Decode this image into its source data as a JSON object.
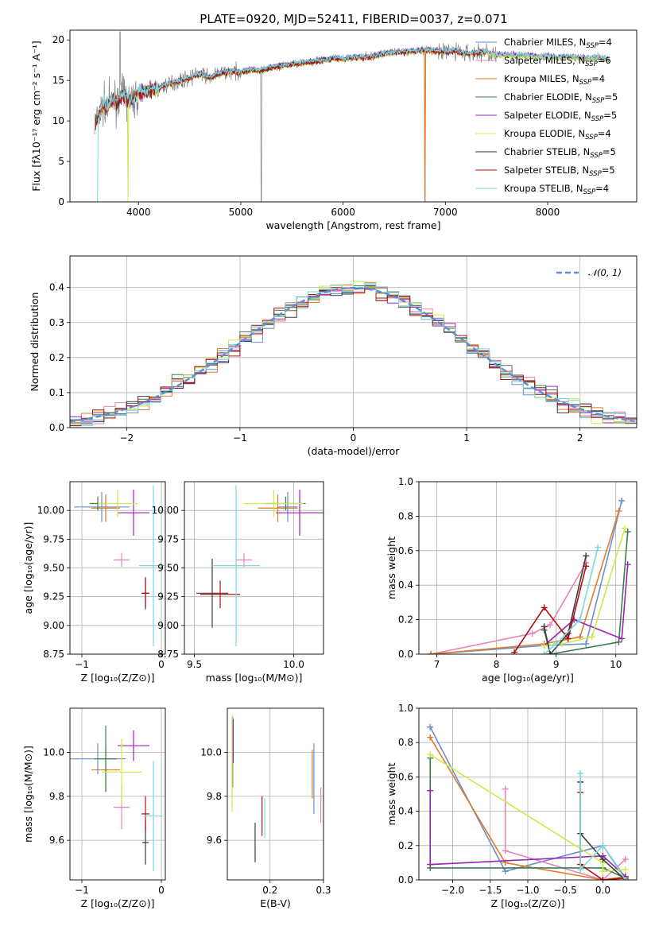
{
  "figure_title": "PLATE=0920, MJD=52411, FIBERID=0037, z=0.071",
  "models": [
    {
      "name": "Chabrier MILES, N",
      "sub": "SSP",
      "tail": "=4",
      "color": "#6a8fd0"
    },
    {
      "name": "Salpeter MILES, N",
      "sub": "SSP",
      "tail": "=6",
      "color": "#e884b8"
    },
    {
      "name": "Kroupa MILES, N",
      "sub": "SSP",
      "tail": "=4",
      "color": "#e07b2c"
    },
    {
      "name": "Chabrier ELODIE, N",
      "sub": "SSP",
      "tail": "=5",
      "color": "#3b7d50"
    },
    {
      "name": "Salpeter ELODIE, N",
      "sub": "SSP",
      "tail": "=5",
      "color": "#9a27b0"
    },
    {
      "name": "Kroupa ELODIE, N",
      "sub": "SSP",
      "tail": "=4",
      "color": "#cfe84a"
    },
    {
      "name": "Chabrier STELIB, N",
      "sub": "SSP",
      "tail": "=5",
      "color": "#3c3c3c"
    },
    {
      "name": "Salpeter STELIB, N",
      "sub": "SSP",
      "tail": "=5",
      "color": "#b01010"
    },
    {
      "name": "Kroupa STELIB, N",
      "sub": "SSP",
      "tail": "=4",
      "color": "#7ad8de"
    }
  ],
  "chart_data": [
    {
      "id": "spectrum",
      "type": "line",
      "xlabel": "wavelength [Angstrom, rest frame]",
      "ylabel": "Flux [fλ10⁻¹⁷ erg cm⁻² s⁻¹ A⁻¹]",
      "xlim": [
        3330,
        8870
      ],
      "ylim": [
        0,
        21.2
      ],
      "xticks": [
        4000,
        5000,
        6000,
        7000,
        8000
      ],
      "yticks": [
        0,
        5,
        10,
        15,
        20
      ],
      "data_color": "#808080",
      "x": [
        3570,
        3600,
        3650,
        3700,
        3750,
        3800,
        3850,
        3900,
        3950,
        4000,
        4100,
        4200,
        4300,
        4400,
        4500,
        4600,
        4700,
        4800,
        4900,
        5000,
        5100,
        5200,
        5300,
        5400,
        5500,
        5600,
        5700,
        5800,
        5900,
        6000,
        6100,
        6200,
        6300,
        6400,
        6500,
        6600,
        6700,
        6800,
        6900,
        7000,
        7100,
        7200,
        7300,
        7400,
        7500,
        7600,
        7700,
        7800,
        7900,
        8000,
        8100,
        8200,
        8300,
        8400,
        8500,
        8600
      ],
      "y": [
        9.5,
        10.3,
        11.8,
        12.0,
        12.5,
        12.3,
        13.2,
        12.6,
        12.4,
        13.4,
        13.8,
        14.0,
        14.6,
        14.9,
        15.3,
        15.8,
        15.3,
        15.9,
        16.1,
        16.0,
        16.3,
        16.2,
        16.6,
        16.8,
        17.0,
        17.2,
        17.3,
        17.5,
        17.7,
        17.6,
        17.9,
        17.8,
        18.0,
        18.3,
        18.5,
        18.5,
        18.6,
        18.8,
        18.6,
        18.5,
        18.7,
        18.3,
        18.4,
        18.5,
        18.1,
        18.2,
        18.0,
        18.1,
        17.9,
        18.0,
        17.8,
        17.9,
        17.8,
        17.7,
        17.8,
        17.6
      ],
      "model_offsets": [
        0.05,
        0.1,
        -0.05,
        0.0,
        0.08,
        -0.1,
        0.03,
        -0.06,
        0.12
      ]
    },
    {
      "id": "residuals",
      "type": "step",
      "xlabel": "(data-model)/error",
      "ylabel": "Normed distribution",
      "xlim": [
        -2.5,
        2.5
      ],
      "ylim": [
        0,
        0.49
      ],
      "xticks": [
        -2,
        -1,
        0,
        1,
        2
      ],
      "yticks": [
        0.0,
        0.1,
        0.2,
        0.3,
        0.4
      ],
      "legend": "𝒩(0, 1)",
      "legend_loc": "upper right"
    },
    {
      "id": "age_vs_Z",
      "type": "errorbar",
      "xlabel": "Z [log₁₀(Z/Z⊙)]",
      "ylabel": "age  [log₁₀(age/yr)]",
      "xlim": [
        -1.15,
        0.05
      ],
      "ylim": [
        8.75,
        10.25
      ],
      "xticks": [
        -1,
        0
      ],
      "yticks": [
        8.75,
        9.0,
        9.25,
        9.5,
        9.75,
        10.0
      ],
      "points": [
        {
          "x": -0.75,
          "xe": 0.35,
          "y": 10.03,
          "ye": 0.13
        },
        {
          "x": -0.5,
          "xe": 0.1,
          "y": 9.57,
          "ye": 0.06
        },
        {
          "x": -0.7,
          "xe": 0.18,
          "y": 10.02,
          "ye": 0.12
        },
        {
          "x": -0.8,
          "xe": 0.1,
          "y": 10.06,
          "ye": 0.06
        },
        {
          "x": -0.35,
          "xe": 0.2,
          "y": 9.98,
          "ye": 0.2
        },
        {
          "x": -0.55,
          "xe": 0.25,
          "y": 10.06,
          "ye": 0.12
        },
        {
          "x": -0.2,
          "xe": 0.04,
          "y": 9.28,
          "ye": 0.14
        },
        {
          "x": -0.2,
          "xe": 0.05,
          "y": 9.28,
          "ye": 0.12
        },
        {
          "x": -0.1,
          "xe": 0.18,
          "y": 9.52,
          "ye": 0.7
        }
      ]
    },
    {
      "id": "age_vs_mass",
      "type": "errorbar",
      "xlabel": "mass [log₁₀(M/M⊙)]",
      "ylabel": "",
      "xlim": [
        9.45,
        10.15
      ],
      "ylim": [
        8.75,
        10.25
      ],
      "xticks": [
        9.5,
        10.0
      ],
      "yticks": [
        8.75,
        9.0,
        9.25,
        9.5,
        9.75,
        10.0
      ],
      "points": [
        {
          "x": 9.97,
          "xe": 0.05,
          "y": 10.03,
          "ye": 0.13
        },
        {
          "x": 9.75,
          "xe": 0.04,
          "y": 9.57,
          "ye": 0.06
        },
        {
          "x": 9.92,
          "xe": 0.1,
          "y": 10.02,
          "ye": 0.12
        },
        {
          "x": 9.96,
          "xe": 0.1,
          "y": 10.06,
          "ye": 0.06
        },
        {
          "x": 10.03,
          "xe": 0.12,
          "y": 9.98,
          "ye": 0.2
        },
        {
          "x": 9.9,
          "xe": 0.15,
          "y": 10.06,
          "ye": 0.12
        },
        {
          "x": 9.59,
          "xe": 0.08,
          "y": 9.28,
          "ye": 0.3
        },
        {
          "x": 9.63,
          "xe": 0.1,
          "y": 9.27,
          "ye": 0.12
        },
        {
          "x": 9.71,
          "xe": 0.12,
          "y": 9.52,
          "ye": 0.7
        }
      ]
    },
    {
      "id": "weight_vs_age",
      "type": "line",
      "xlabel": "age  [log₁₀(age/yr)]",
      "ylabel": "mass weight",
      "xlim": [
        6.7,
        10.35
      ],
      "ylim": [
        0,
        1.0
      ],
      "xticks": [
        7,
        8,
        9,
        10
      ],
      "yticks": [
        0.0,
        0.2,
        0.4,
        0.6,
        0.8,
        1.0
      ],
      "series": [
        {
          "x": [
            6.9,
            8.8,
            9.5,
            10.1
          ],
          "y": [
            0.0,
            0.05,
            0.06,
            0.89
          ]
        },
        {
          "x": [
            6.9,
            8.6,
            8.9,
            9.5
          ],
          "y": [
            0.0,
            0.12,
            0.17,
            0.53
          ]
        },
        {
          "x": [
            6.9,
            8.8,
            9.4,
            10.05
          ],
          "y": [
            0.0,
            0.06,
            0.1,
            0.83
          ]
        },
        {
          "x": [
            8.8,
            8.9,
            10.05,
            10.2
          ],
          "y": [
            0.14,
            0.0,
            0.07,
            0.71
          ]
        },
        {
          "x": [
            8.8,
            9.3,
            10.1,
            10.2
          ],
          "y": [
            0.05,
            0.2,
            0.09,
            0.52
          ]
        },
        {
          "x": [
            8.8,
            9.1,
            9.6,
            10.15
          ],
          "y": [
            0.05,
            0.06,
            0.1,
            0.73
          ]
        },
        {
          "x": [
            8.8,
            8.9,
            9.2,
            9.5
          ],
          "y": [
            0.16,
            0.0,
            0.12,
            0.57
          ]
        },
        {
          "x": [
            8.3,
            8.8,
            9.2,
            9.5
          ],
          "y": [
            0.01,
            0.27,
            0.09,
            0.51
          ]
        },
        {
          "x": [
            8.8,
            9.0,
            9.4,
            9.7
          ],
          "y": [
            0.0,
            0.06,
            0.2,
            0.62
          ]
        }
      ]
    },
    {
      "id": "mass_vs_Z",
      "type": "errorbar",
      "xlabel": "Z [log₁₀(Z/Z⊙)]",
      "ylabel": "mass [log₁₀(M/M⊙)]",
      "xlim": [
        -1.15,
        0.05
      ],
      "ylim": [
        9.42,
        10.2
      ],
      "xticks": [
        -1,
        0
      ],
      "yticks": [
        9.6,
        9.8,
        10.0
      ],
      "points": [
        {
          "x": -0.8,
          "xe": 0.35,
          "y": 9.97,
          "ye": 0.07
        },
        {
          "x": -0.5,
          "xe": 0.1,
          "y": 9.75,
          "ye": 0.1
        },
        {
          "x": -0.7,
          "xe": 0.18,
          "y": 9.92,
          "ye": 0.1
        },
        {
          "x": -0.7,
          "xe": 0.14,
          "y": 9.97,
          "ye": 0.15
        },
        {
          "x": -0.35,
          "xe": 0.2,
          "y": 10.03,
          "ye": 0.07
        },
        {
          "x": -0.5,
          "xe": 0.25,
          "y": 9.91,
          "ye": 0.15
        },
        {
          "x": -0.2,
          "xe": 0.04,
          "y": 9.59,
          "ye": 0.1
        },
        {
          "x": -0.2,
          "xe": 0.05,
          "y": 9.72,
          "ye": 0.08
        },
        {
          "x": -0.1,
          "xe": 0.12,
          "y": 9.71,
          "ye": 0.25
        }
      ]
    },
    {
      "id": "mass_vs_EBV",
      "type": "errorbar",
      "xlabel": "E(B-V)",
      "ylabel": "",
      "xlim": [
        0.12,
        0.3
      ],
      "ylim": [
        9.42,
        10.2
      ],
      "xticks": [
        0.2,
        0.3
      ],
      "yticks": [
        9.6,
        9.8,
        10.0
      ],
      "points": [
        {
          "x": 0.282,
          "xe": 0,
          "y": 9.88,
          "ye": 0.16
        },
        {
          "x": 0.295,
          "xe": 0,
          "y": 9.76,
          "ye": 0.08
        },
        {
          "x": 0.279,
          "xe": 0,
          "y": 9.9,
          "ye": 0.11
        },
        {
          "x": 0.13,
          "xe": 0,
          "y": 10.0,
          "ye": 0.16
        },
        {
          "x": 0.131,
          "xe": 0,
          "y": 10.05,
          "ye": 0.1
        },
        {
          "x": 0.129,
          "xe": 0,
          "y": 9.95,
          "ye": 0.22
        },
        {
          "x": 0.172,
          "xe": 0,
          "y": 9.59,
          "ye": 0.09
        },
        {
          "x": 0.185,
          "xe": 0,
          "y": 9.71,
          "ye": 0.09
        },
        {
          "x": 0.19,
          "xe": 0,
          "y": 9.7,
          "ye": 0.09
        }
      ]
    },
    {
      "id": "weight_vs_Z",
      "type": "line",
      "xlabel": "Z [log₁₀(Z/Z⊙)]",
      "ylabel": "mass weight",
      "xlim": [
        -2.45,
        0.45
      ],
      "ylim": [
        0,
        1.0
      ],
      "xticks": [
        -2.0,
        -1.5,
        -1.0,
        -0.5,
        0.0
      ],
      "yticks": [
        0.0,
        0.2,
        0.4,
        0.6,
        0.8,
        1.0
      ],
      "series": [
        {
          "x": [
            -2.3,
            -1.3,
            0.0,
            0.3
          ],
          "y": [
            0.89,
            0.05,
            0.2,
            0.01
          ]
        },
        {
          "x": [
            -1.3,
            -1.3,
            0.0,
            0.3
          ],
          "y": [
            0.53,
            0.17,
            0.0,
            0.12
          ]
        },
        {
          "x": [
            -2.3,
            -1.3,
            0.0,
            0.3
          ],
          "y": [
            0.83,
            0.1,
            0.0,
            0.02
          ]
        },
        {
          "x": [
            -2.3,
            -2.3,
            0.0,
            0.3
          ],
          "y": [
            0.71,
            0.07,
            0.07,
            0.01
          ]
        },
        {
          "x": [
            -2.3,
            -2.3,
            0.0,
            0.3
          ],
          "y": [
            0.52,
            0.09,
            0.14,
            0.02
          ]
        },
        {
          "x": [
            -2.3,
            0.0,
            0.0,
            0.3
          ],
          "y": [
            0.73,
            0.1,
            0.05,
            0.06
          ]
        },
        {
          "x": [
            -0.3,
            -0.3,
            0.0,
            0.3
          ],
          "y": [
            0.57,
            0.27,
            0.12,
            0.0
          ]
        },
        {
          "x": [
            -0.3,
            -0.3,
            0.0,
            0.3
          ],
          "y": [
            0.51,
            0.09,
            0.0,
            0.01
          ]
        },
        {
          "x": [
            -0.3,
            -0.3,
            0.0,
            0.3
          ],
          "y": [
            0.62,
            0.06,
            0.2,
            0.0
          ]
        }
      ]
    }
  ]
}
